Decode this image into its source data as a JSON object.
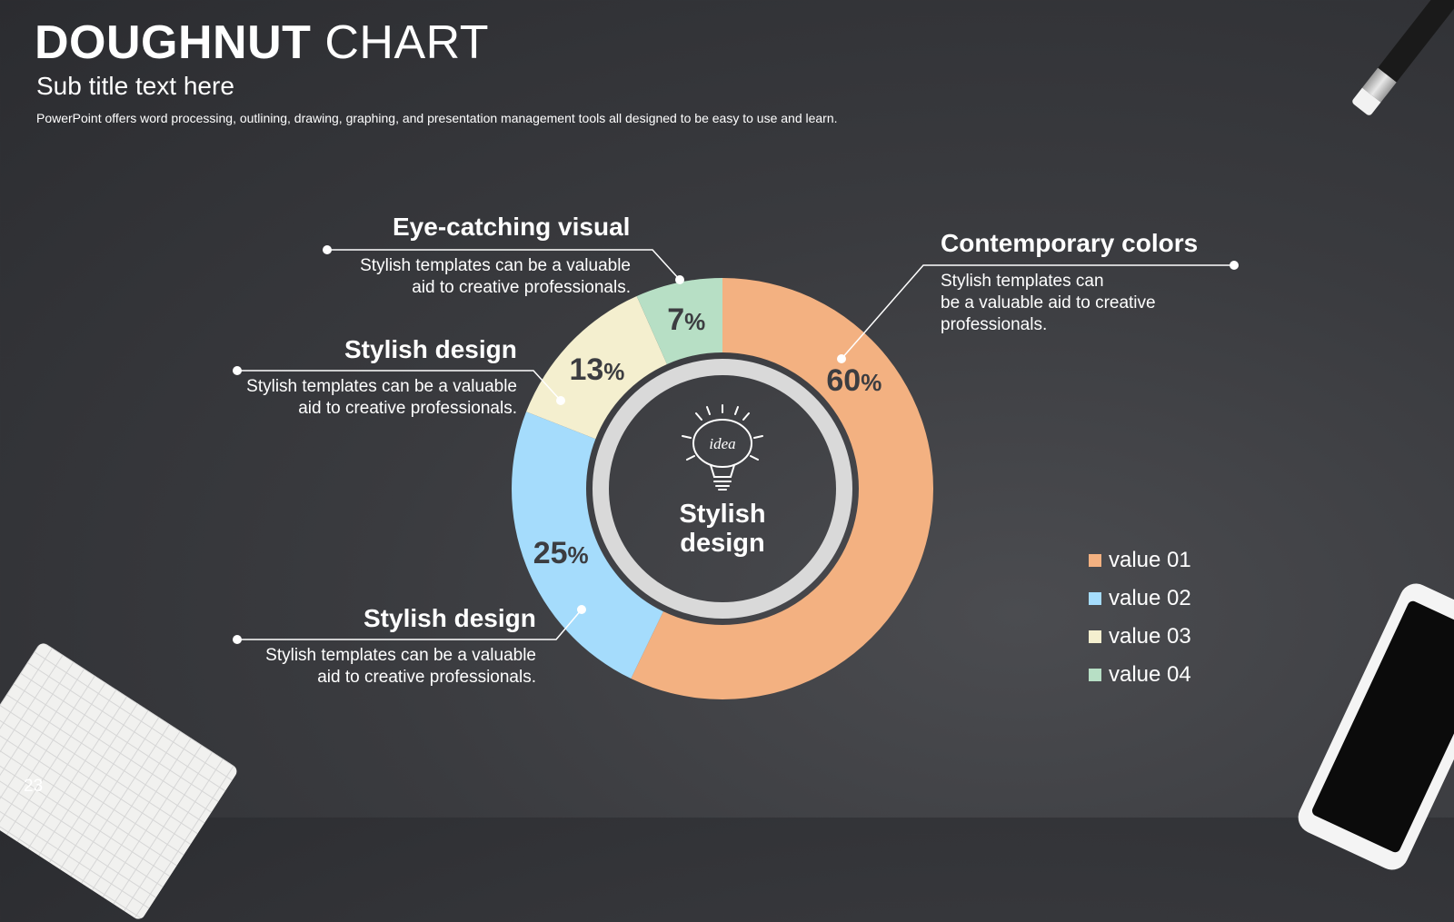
{
  "slide": {
    "title_bold": "DOUGHNUT",
    "title_light": "CHART",
    "subtitle": "Sub title text here",
    "description": "PowerPoint offers word processing, outlining, drawing, graphing, and presentation management tools all designed to be easy to use and learn.",
    "page_number": "23"
  },
  "center": {
    "line1": "Stylish",
    "line2": "design",
    "icon_text": "idea"
  },
  "callouts": {
    "eye_catching": {
      "title": "Eye-catching visual",
      "line1": "Stylish templates can be a valuable",
      "line2": "aid to creative professionals."
    },
    "stylish_top": {
      "title": "Stylish design",
      "line1": "Stylish templates can be a valuable",
      "line2": "aid to creative professionals."
    },
    "stylish_bottom": {
      "title": "Stylish design",
      "line1": "Stylish templates can be a valuable",
      "line2": "aid to creative professionals."
    },
    "contemporary": {
      "title": "Contemporary colors",
      "line1": "Stylish templates can",
      "line2": "be a valuable aid to creative",
      "line3": "professionals."
    }
  },
  "chart_data": {
    "type": "pie",
    "variant": "doughnut",
    "categories": [
      "value 01",
      "value 02",
      "value 03",
      "value 04"
    ],
    "values": [
      60,
      25,
      13,
      7
    ],
    "value_labels": [
      "60",
      "25",
      "13",
      "7"
    ],
    "unit": "%",
    "colors": [
      "#f3b181",
      "#a5dcfc",
      "#f4efcf",
      "#b7dfc5"
    ],
    "legend_position": "bottom-right",
    "start_angle": "12 o'clock, clockwise"
  }
}
